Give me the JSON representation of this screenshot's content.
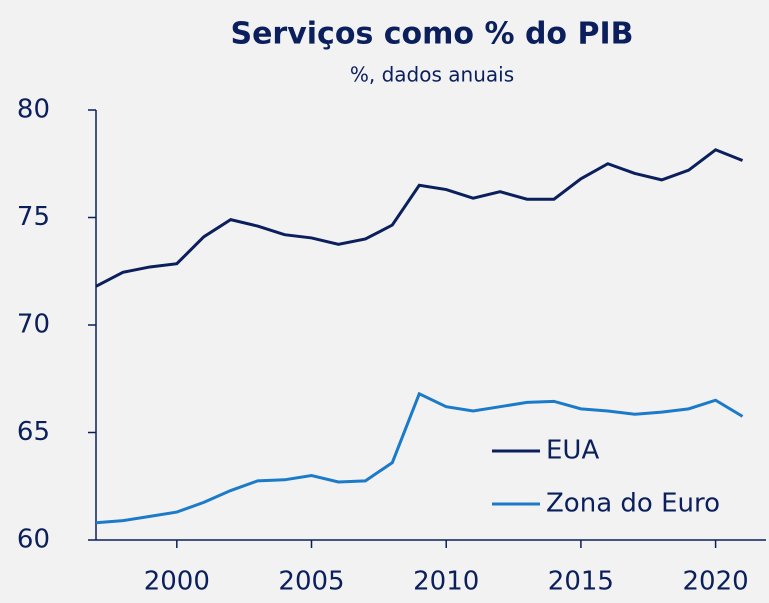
{
  "chart_data": {
    "type": "line",
    "title": "Serviços como % do PIB",
    "subtitle": "%, dados anuais",
    "x": [
      1997,
      1998,
      1999,
      2000,
      2001,
      2002,
      2003,
      2004,
      2005,
      2006,
      2007,
      2008,
      2009,
      2010,
      2011,
      2012,
      2013,
      2014,
      2015,
      2016,
      2017,
      2018,
      2019,
      2020,
      2021
    ],
    "series": [
      {
        "name": "EUA",
        "color": "#0b1f5c",
        "values": [
          71.8,
          72.45,
          72.7,
          72.85,
          74.1,
          74.9,
          74.6,
          74.2,
          74.05,
          73.75,
          74.0,
          74.65,
          76.5,
          76.3,
          75.9,
          76.2,
          75.85,
          75.85,
          76.8,
          77.5,
          77.05,
          76.75,
          77.2,
          78.15,
          77.65
        ]
      },
      {
        "name": "Zona do Euro",
        "color": "#1b7bc8",
        "values": [
          60.8,
          60.9,
          61.1,
          61.3,
          61.75,
          62.3,
          62.75,
          62.8,
          63.0,
          62.7,
          62.75,
          63.6,
          66.8,
          66.2,
          66.0,
          66.2,
          66.4,
          66.45,
          66.1,
          66.0,
          65.85,
          65.95,
          66.1,
          66.5,
          65.75
        ]
      }
    ],
    "xlim": [
      1997,
      2021.5
    ],
    "xticks": [
      2000,
      2005,
      2010,
      2015,
      2020
    ],
    "ylim": [
      60,
      80
    ],
    "yticks": [
      60,
      65,
      70,
      75,
      80
    ],
    "legend": "lower right"
  }
}
